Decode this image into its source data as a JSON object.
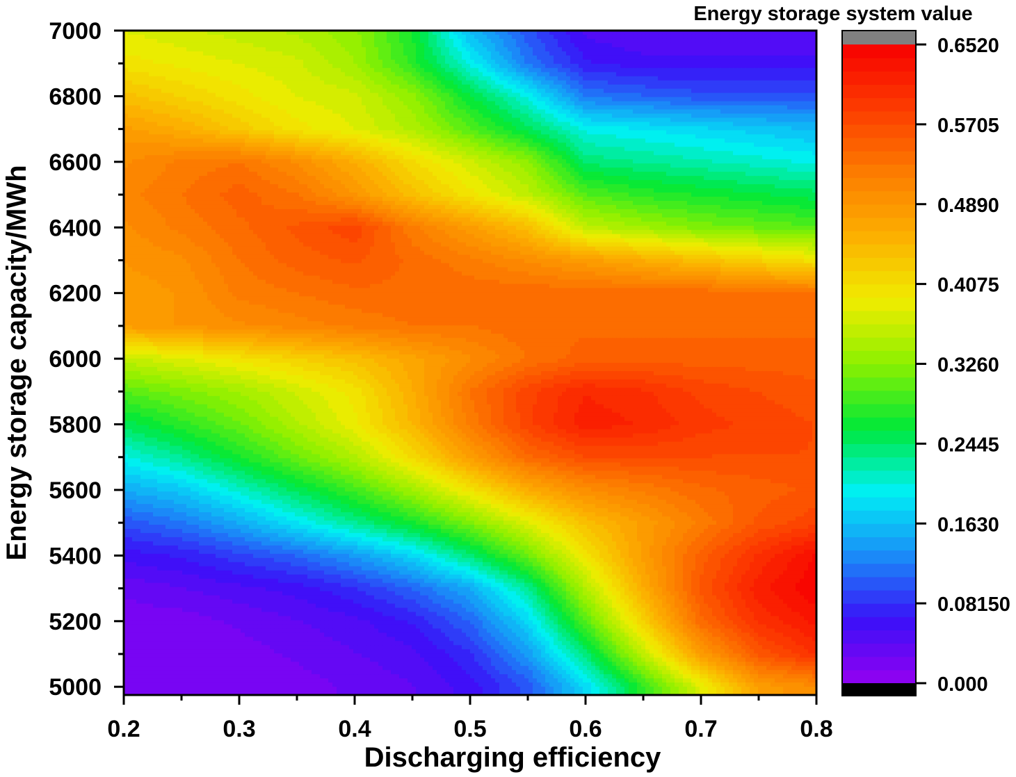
{
  "chart_data": {
    "type": "heatmap",
    "subtype": "filled-contour",
    "xlabel": "Discharging efficiency",
    "ylabel": "Energy storage capacity/MWh",
    "colorbar_title": "Energy storage system value",
    "xlim": [
      0.2,
      0.8
    ],
    "ylim": [
      4975,
      7000
    ],
    "x_ticks": [
      0.2,
      0.3,
      0.4,
      0.5,
      0.6,
      0.7,
      0.8
    ],
    "x_tick_labels": [
      "0.2",
      "0.3",
      "0.4",
      "0.5",
      "0.6",
      "0.7",
      "0.8"
    ],
    "y_ticks": [
      5000,
      5200,
      5400,
      5600,
      5800,
      6000,
      6200,
      6400,
      6600,
      6800,
      7000
    ],
    "y_tick_labels": [
      "5000",
      "5200",
      "5400",
      "5600",
      "5800",
      "6000",
      "6200",
      "6400",
      "6600",
      "6800",
      "7000"
    ],
    "colorbar_ticks": [
      0.0,
      0.0815,
      0.163,
      0.2445,
      0.326,
      0.4075,
      0.489,
      0.5705,
      0.652
    ],
    "colorbar_tick_labels": [
      "0.000",
      "0.08150",
      "0.1630",
      "0.2445",
      "0.3260",
      "0.4075",
      "0.4890",
      "0.5705",
      "0.6520"
    ],
    "zlim": [
      0.0,
      0.652
    ],
    "color_levels": 48,
    "colormap": [
      "#9400f0",
      "#3a10f8",
      "#1a8cf8",
      "#00f0f4",
      "#00e838",
      "#8cf000",
      "#f0ec00",
      "#fcb000",
      "#fc7c00",
      "#fc3c00",
      "#f80000"
    ],
    "below_color": "#000000",
    "above_color": "#808080",
    "x": [
      0.2,
      0.25,
      0.3,
      0.35,
      0.4,
      0.45,
      0.5,
      0.55,
      0.6,
      0.65,
      0.7,
      0.75,
      0.8
    ],
    "y": [
      5000,
      5100,
      5200,
      5300,
      5400,
      5500,
      5600,
      5700,
      5800,
      5900,
      6000,
      6100,
      6200,
      6300,
      6400,
      6500,
      6600,
      6700,
      6800,
      6900,
      7000
    ],
    "z": [
      [
        0.02,
        0.02,
        0.02,
        0.02,
        0.03,
        0.04,
        0.06,
        0.1,
        0.18,
        0.28,
        0.38,
        0.48,
        0.5
      ],
      [
        0.02,
        0.02,
        0.02,
        0.03,
        0.04,
        0.05,
        0.08,
        0.14,
        0.24,
        0.36,
        0.48,
        0.56,
        0.6
      ],
      [
        0.02,
        0.02,
        0.03,
        0.04,
        0.05,
        0.07,
        0.11,
        0.18,
        0.3,
        0.42,
        0.54,
        0.6,
        0.63
      ],
      [
        0.03,
        0.04,
        0.05,
        0.06,
        0.08,
        0.11,
        0.15,
        0.23,
        0.35,
        0.46,
        0.56,
        0.62,
        0.65
      ],
      [
        0.06,
        0.07,
        0.09,
        0.11,
        0.14,
        0.18,
        0.24,
        0.31,
        0.4,
        0.48,
        0.55,
        0.6,
        0.64
      ],
      [
        0.1,
        0.12,
        0.15,
        0.19,
        0.23,
        0.27,
        0.32,
        0.38,
        0.44,
        0.48,
        0.52,
        0.56,
        0.58
      ],
      [
        0.15,
        0.17,
        0.21,
        0.25,
        0.29,
        0.34,
        0.4,
        0.46,
        0.5,
        0.52,
        0.54,
        0.55,
        0.56
      ],
      [
        0.2,
        0.23,
        0.27,
        0.31,
        0.35,
        0.41,
        0.48,
        0.54,
        0.57,
        0.57,
        0.57,
        0.57,
        0.57
      ],
      [
        0.25,
        0.28,
        0.31,
        0.35,
        0.39,
        0.45,
        0.52,
        0.58,
        0.62,
        0.61,
        0.59,
        0.58,
        0.57
      ],
      [
        0.3,
        0.32,
        0.34,
        0.37,
        0.4,
        0.46,
        0.53,
        0.58,
        0.61,
        0.6,
        0.58,
        0.57,
        0.56
      ],
      [
        0.36,
        0.38,
        0.4,
        0.42,
        0.44,
        0.47,
        0.5,
        0.53,
        0.55,
        0.55,
        0.55,
        0.55,
        0.55
      ],
      [
        0.48,
        0.49,
        0.5,
        0.51,
        0.52,
        0.53,
        0.53,
        0.54,
        0.54,
        0.54,
        0.54,
        0.54,
        0.54
      ],
      [
        0.48,
        0.49,
        0.52,
        0.53,
        0.54,
        0.54,
        0.54,
        0.54,
        0.54,
        0.54,
        0.54,
        0.53,
        0.53
      ],
      [
        0.49,
        0.5,
        0.53,
        0.55,
        0.56,
        0.54,
        0.52,
        0.5,
        0.48,
        0.46,
        0.44,
        0.42,
        0.4
      ],
      [
        0.5,
        0.52,
        0.54,
        0.56,
        0.58,
        0.52,
        0.48,
        0.44,
        0.36,
        0.34,
        0.32,
        0.31,
        0.3
      ],
      [
        0.51,
        0.53,
        0.55,
        0.53,
        0.49,
        0.44,
        0.4,
        0.36,
        0.3,
        0.28,
        0.27,
        0.26,
        0.25
      ],
      [
        0.5,
        0.52,
        0.53,
        0.5,
        0.46,
        0.41,
        0.37,
        0.33,
        0.24,
        0.23,
        0.22,
        0.21,
        0.2
      ],
      [
        0.48,
        0.46,
        0.43,
        0.4,
        0.38,
        0.35,
        0.3,
        0.25,
        0.2,
        0.19,
        0.18,
        0.17,
        0.16
      ],
      [
        0.44,
        0.42,
        0.4,
        0.38,
        0.37,
        0.33,
        0.26,
        0.2,
        0.12,
        0.11,
        0.1,
        0.1,
        0.1
      ],
      [
        0.4,
        0.39,
        0.38,
        0.37,
        0.34,
        0.28,
        0.2,
        0.12,
        0.07,
        0.06,
        0.06,
        0.06,
        0.06
      ],
      [
        0.38,
        0.37,
        0.36,
        0.35,
        0.33,
        0.27,
        0.16,
        0.1,
        0.05,
        0.04,
        0.04,
        0.04,
        0.04
      ]
    ]
  }
}
